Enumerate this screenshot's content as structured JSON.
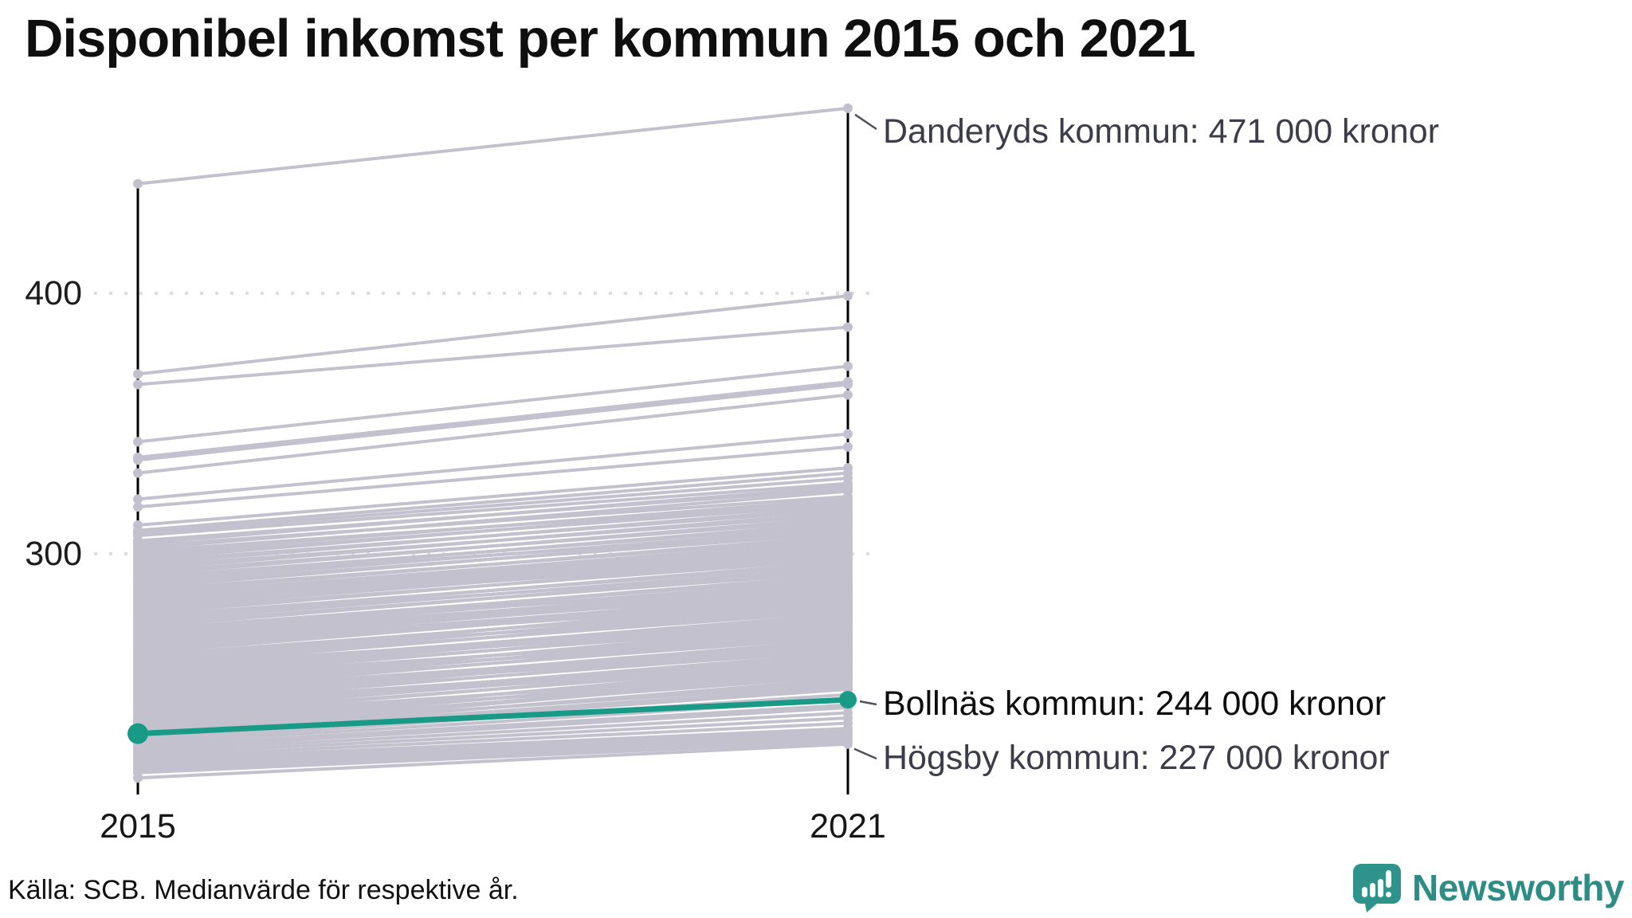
{
  "title": "Disponibel inkomst per kommun 2015 och 2021",
  "source_note": "Källa: SCB. Medianvärde för respektive år.",
  "branding": {
    "name": "Newsworthy",
    "icon": "newsworthy-speech-bubble-barchart-icon",
    "teal": "#2d8d85"
  },
  "colors": {
    "line_gray": "#c3c1cd",
    "highlight_teal": "#199a86",
    "axis_black": "#000000",
    "grid_dot": "#dcdce3",
    "annotation_slate": "#3d3d49",
    "annotation_black": "#0d0d0d",
    "connector": "#50505b"
  },
  "chart_data": {
    "type": "line",
    "subtype": "slope-chart",
    "x": [
      "2015",
      "2021"
    ],
    "xticks": [
      "2015",
      "2021"
    ],
    "yticks": [
      "400",
      "300"
    ],
    "ytick_values": [
      400,
      300
    ],
    "ylabel": "",
    "xlabel": "",
    "ylim": [
      207,
      480
    ],
    "grid": "dotted horizontal at 300 and 400",
    "legend": "none",
    "unit": "kronor (thousands)",
    "annotations": [
      {
        "name": "Danderyds kommun",
        "value_2021": 471,
        "text": "Danderyds kommun: 471 000 kronor"
      },
      {
        "name": "Bollnäs kommun",
        "value_2021": 244,
        "text": "Bollnäs kommun: 244 000 kronor"
      },
      {
        "name": "Högsby kommun",
        "value_2021": 227,
        "text": "Högsby kommun: 227 000 kronor"
      }
    ],
    "highlight": {
      "name": "Bollnäs kommun",
      "values": [
        231,
        244
      ]
    },
    "series": [
      {
        "name": "Danderyds kommun",
        "values": [
          442,
          471
        ]
      },
      {
        "name": "kommun",
        "values": [
          369,
          399
        ]
      },
      {
        "name": "kommun",
        "values": [
          365,
          387
        ]
      },
      {
        "name": "kommun",
        "values": [
          343,
          372
        ]
      },
      {
        "name": "kommun",
        "values": [
          337,
          366
        ]
      },
      {
        "name": "kommun",
        "values": [
          336,
          365
        ]
      },
      {
        "name": "kommun",
        "values": [
          331,
          361
        ]
      },
      {
        "name": "kommun",
        "values": [
          321,
          346
        ]
      },
      {
        "name": "kommun",
        "values": [
          318,
          341
        ]
      }
    ],
    "bundle_pairs_2015_2021": [
      [
        311,
        333
      ],
      [
        309,
        331
      ],
      [
        308,
        329
      ],
      [
        307,
        327
      ],
      [
        305,
        325
      ],
      [
        304,
        326
      ],
      [
        303,
        322
      ],
      [
        302,
        324
      ],
      [
        301,
        320
      ],
      [
        300,
        321
      ],
      [
        299,
        319
      ],
      [
        298,
        320
      ],
      [
        297,
        317
      ],
      [
        296,
        318
      ],
      [
        295,
        315
      ],
      [
        294,
        316
      ],
      [
        293,
        313
      ],
      [
        292,
        314
      ],
      [
        291,
        311
      ],
      [
        290,
        312
      ],
      [
        290,
        309
      ],
      [
        289,
        310
      ],
      [
        288,
        308
      ],
      [
        287,
        309
      ],
      [
        286,
        306
      ],
      [
        285,
        307
      ],
      [
        284,
        305
      ],
      [
        283,
        304
      ],
      [
        282,
        303
      ],
      [
        281,
        302
      ],
      [
        280,
        301
      ],
      [
        280,
        299
      ],
      [
        279,
        300
      ],
      [
        278,
        298
      ],
      [
        277,
        299
      ],
      [
        276,
        296
      ],
      [
        275,
        297
      ],
      [
        275,
        294
      ],
      [
        274,
        295
      ],
      [
        273,
        293
      ],
      [
        272,
        294
      ],
      [
        271,
        291
      ],
      [
        270,
        292
      ],
      [
        270,
        289
      ],
      [
        269,
        290
      ],
      [
        268,
        288
      ],
      [
        267,
        289
      ],
      [
        266,
        286
      ],
      [
        265,
        287
      ],
      [
        265,
        284
      ],
      [
        264,
        285
      ],
      [
        263,
        283
      ],
      [
        262,
        284
      ],
      [
        261,
        281
      ],
      [
        260,
        282
      ],
      [
        260,
        279
      ],
      [
        259,
        280
      ],
      [
        258,
        278
      ],
      [
        257,
        279
      ],
      [
        256,
        276
      ],
      [
        255,
        277
      ],
      [
        255,
        274
      ],
      [
        254,
        275
      ],
      [
        253,
        273
      ],
      [
        252,
        274
      ],
      [
        251,
        271
      ],
      [
        250,
        272
      ],
      [
        250,
        269
      ],
      [
        249,
        270
      ],
      [
        248,
        268
      ],
      [
        247,
        269
      ],
      [
        246,
        266
      ],
      [
        245,
        267
      ],
      [
        245,
        264
      ],
      [
        244,
        265
      ],
      [
        243,
        263
      ],
      [
        242,
        264
      ],
      [
        241,
        261
      ],
      [
        240,
        262
      ],
      [
        240,
        259
      ],
      [
        239,
        260
      ],
      [
        238,
        258
      ],
      [
        237,
        259
      ],
      [
        236,
        256
      ],
      [
        235,
        257
      ],
      [
        235,
        254
      ],
      [
        234,
        255
      ],
      [
        233,
        253
      ],
      [
        232,
        254
      ],
      [
        231,
        251
      ],
      [
        230,
        252
      ],
      [
        230,
        249
      ],
      [
        229,
        248
      ],
      [
        228,
        246
      ],
      [
        227,
        244
      ],
      [
        226,
        242
      ],
      [
        225,
        241
      ],
      [
        224,
        239
      ],
      [
        223,
        237
      ],
      [
        222,
        235
      ],
      [
        221,
        233
      ],
      [
        220,
        232
      ],
      [
        219,
        231
      ],
      [
        218,
        230
      ],
      [
        217,
        229
      ],
      [
        216,
        228
      ],
      [
        214,
        227
      ],
      [
        268,
        285
      ],
      [
        266,
        288
      ],
      [
        264,
        282
      ],
      [
        262,
        286
      ],
      [
        258,
        281
      ],
      [
        256,
        273
      ],
      [
        254,
        277
      ],
      [
        252,
        270
      ],
      [
        248,
        271
      ],
      [
        246,
        263
      ],
      [
        244,
        267
      ],
      [
        242,
        260
      ],
      [
        238,
        262
      ],
      [
        236,
        253
      ],
      [
        234,
        258
      ],
      [
        232,
        250
      ],
      [
        261,
        278
      ],
      [
        259,
        283
      ],
      [
        257,
        274
      ],
      [
        253,
        276
      ],
      [
        251,
        268
      ],
      [
        249,
        273
      ],
      [
        247,
        265
      ],
      [
        243,
        266
      ],
      [
        241,
        258
      ],
      [
        237,
        255
      ],
      [
        233,
        256
      ],
      [
        231,
        254
      ],
      [
        269,
        287
      ],
      [
        271,
        289
      ]
    ]
  }
}
